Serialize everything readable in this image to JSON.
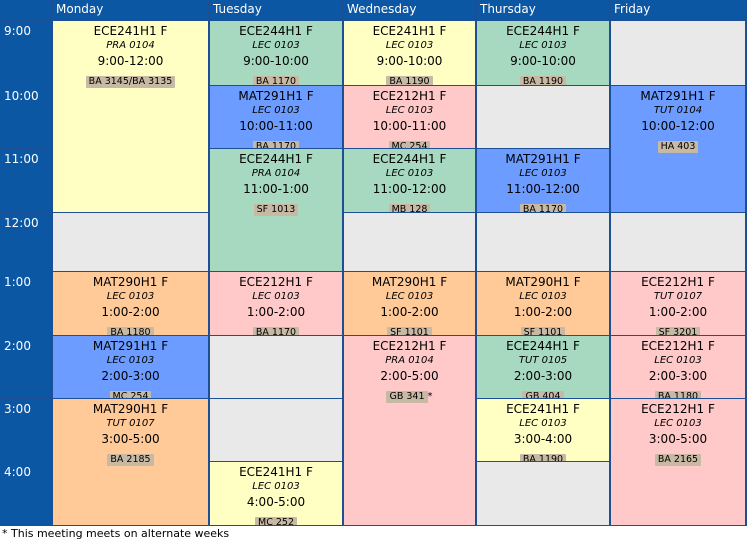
{
  "days": [
    "Monday",
    "Tuesday",
    "Wednesday",
    "Thursday",
    "Friday"
  ],
  "times": [
    "9:00",
    "10:00",
    "11:00",
    "12:00",
    "1:00",
    "2:00",
    "3:00",
    "4:00"
  ],
  "colors": {
    "ECE241": "#ffffc4",
    "ECE244": "#a7d8c0",
    "ECE212": "#ffc9c9",
    "MAT291": "#6c9cff",
    "MAT290": "#ffc998",
    "empty": "#e9e9e9",
    "header": "#0b57a4",
    "grid": "#1d4f94"
  },
  "events": [
    {
      "id": "mon-ece241",
      "day": 0,
      "slot": 0,
      "span": 3,
      "color": "ECE241",
      "code": "ECE241H1 F",
      "section": "PRA 0104",
      "time": "9:00-12:00",
      "room": "BA 3145/BA 3135"
    },
    {
      "id": "mon-mat290-1",
      "day": 0,
      "slot": 4,
      "span": 1,
      "color": "MAT290",
      "code": "MAT290H1 F",
      "section": "LEC 0103",
      "time": "1:00-2:00",
      "room": "BA 1180"
    },
    {
      "id": "mon-mat291",
      "day": 0,
      "slot": 5,
      "span": 1,
      "color": "MAT291",
      "code": "MAT291H1 F",
      "section": "LEC 0103",
      "time": "2:00-3:00",
      "room": "MC 254"
    },
    {
      "id": "mon-mat290-2",
      "day": 0,
      "slot": 6,
      "span": 2,
      "color": "MAT290",
      "code": "MAT290H1 F",
      "section": "TUT 0107",
      "time": "3:00-5:00",
      "room": "BA 2185"
    },
    {
      "id": "tue-ece244-1",
      "day": 1,
      "slot": 0,
      "span": 1,
      "color": "ECE244",
      "code": "ECE244H1 F",
      "section": "LEC 0103",
      "time": "9:00-10:00",
      "room": "BA 1170"
    },
    {
      "id": "tue-mat291",
      "day": 1,
      "slot": 1,
      "span": 1,
      "color": "MAT291",
      "code": "MAT291H1 F",
      "section": "LEC 0103",
      "time": "10:00-11:00",
      "room": "BA 1170"
    },
    {
      "id": "tue-ece244-2",
      "day": 1,
      "slot": 2,
      "span": 2,
      "color": "ECE244",
      "code": "ECE244H1 F",
      "section": "PRA 0104",
      "time": "11:00-1:00",
      "room": "SF 1013"
    },
    {
      "id": "tue-ece212",
      "day": 1,
      "slot": 4,
      "span": 1,
      "color": "ECE212",
      "code": "ECE212H1 F",
      "section": "LEC 0103",
      "time": "1:00-2:00",
      "room": "BA 1170"
    },
    {
      "id": "tue-ece241",
      "day": 1,
      "slot": 7,
      "span": 1,
      "color": "ECE241",
      "code": "ECE241H1 F",
      "section": "LEC 0103",
      "time": "4:00-5:00",
      "room": "MC 252"
    },
    {
      "id": "wed-ece241",
      "day": 2,
      "slot": 0,
      "span": 1,
      "color": "ECE241",
      "code": "ECE241H1 F",
      "section": "LEC 0103",
      "time": "9:00-10:00",
      "room": "BA 1190"
    },
    {
      "id": "wed-ece212-1",
      "day": 2,
      "slot": 1,
      "span": 1,
      "color": "ECE212",
      "code": "ECE212H1 F",
      "section": "LEC 0103",
      "time": "10:00-11:00",
      "room": "MC 254"
    },
    {
      "id": "wed-ece244",
      "day": 2,
      "slot": 2,
      "span": 1,
      "color": "ECE244",
      "code": "ECE244H1 F",
      "section": "LEC 0103",
      "time": "11:00-12:00",
      "room": "MB 128"
    },
    {
      "id": "wed-mat290",
      "day": 2,
      "slot": 4,
      "span": 1,
      "color": "MAT290",
      "code": "MAT290H1 F",
      "section": "LEC 0103",
      "time": "1:00-2:00",
      "room": "SF 1101"
    },
    {
      "id": "wed-ece212-2",
      "day": 2,
      "slot": 5,
      "span": 3,
      "color": "ECE212",
      "code": "ECE212H1 F",
      "section": "PRA 0104",
      "time": "2:00-5:00",
      "room": "GB 341",
      "suffix": "*"
    },
    {
      "id": "thu-ece244-1",
      "day": 3,
      "slot": 0,
      "span": 1,
      "color": "ECE244",
      "code": "ECE244H1 F",
      "section": "LEC 0103",
      "time": "9:00-10:00",
      "room": "BA 1190"
    },
    {
      "id": "thu-mat291",
      "day": 3,
      "slot": 2,
      "span": 1,
      "color": "MAT291",
      "code": "MAT291H1 F",
      "section": "LEC 0103",
      "time": "11:00-12:00",
      "room": "BA 1170"
    },
    {
      "id": "thu-mat290",
      "day": 3,
      "slot": 4,
      "span": 1,
      "color": "MAT290",
      "code": "MAT290H1 F",
      "section": "LEC 0103",
      "time": "1:00-2:00",
      "room": "SF 1101"
    },
    {
      "id": "thu-ece244-2",
      "day": 3,
      "slot": 5,
      "span": 1,
      "color": "ECE244",
      "code": "ECE244H1 F",
      "section": "TUT 0105",
      "time": "2:00-3:00",
      "room": "GB 404"
    },
    {
      "id": "thu-ece241",
      "day": 3,
      "slot": 6,
      "span": 1,
      "color": "ECE241",
      "code": "ECE241H1 F",
      "section": "LEC 0103",
      "time": "3:00-4:00",
      "room": "BA 1190"
    },
    {
      "id": "fri-mat291",
      "day": 4,
      "slot": 1,
      "span": 2,
      "color": "MAT291",
      "code": "MAT291H1 F",
      "section": "TUT 0104",
      "time": "10:00-12:00",
      "room": "HA 403"
    },
    {
      "id": "fri-ece212-1",
      "day": 4,
      "slot": 4,
      "span": 1,
      "color": "ECE212",
      "code": "ECE212H1 F",
      "section": "TUT 0107",
      "time": "1:00-2:00",
      "room": "SF 3201"
    },
    {
      "id": "fri-ece212-2",
      "day": 4,
      "slot": 5,
      "span": 1,
      "color": "ECE212",
      "code": "ECE212H1 F",
      "section": "LEC 0103",
      "time": "2:00-3:00",
      "room": "BA 1180"
    },
    {
      "id": "fri-ece212-3",
      "day": 4,
      "slot": 6,
      "span": 2,
      "color": "ECE212",
      "code": "ECE212H1 F",
      "section": "LEC 0103",
      "time": "3:00-5:00",
      "room": "BA 2165"
    }
  ],
  "empty_cells": [
    {
      "day": 0,
      "slot": 3,
      "span": 1
    },
    {
      "day": 1,
      "slot": 5,
      "span": 1
    },
    {
      "day": 1,
      "slot": 6,
      "span": 1
    },
    {
      "day": 2,
      "slot": 3,
      "span": 1
    },
    {
      "day": 3,
      "slot": 1,
      "span": 1
    },
    {
      "day": 3,
      "slot": 3,
      "span": 1
    },
    {
      "day": 3,
      "slot": 7,
      "span": 1
    },
    {
      "day": 4,
      "slot": 0,
      "span": 1
    },
    {
      "day": 4,
      "slot": 3,
      "span": 1
    }
  ],
  "footnote": "* This meeting meets on alternate weeks"
}
